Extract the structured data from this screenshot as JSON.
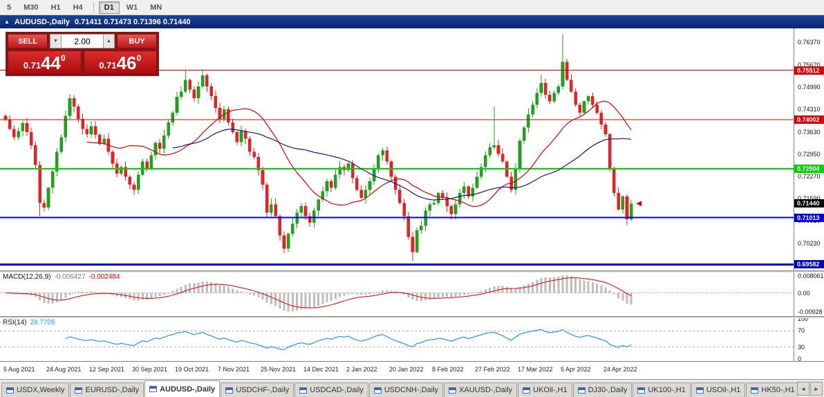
{
  "toolbar": {
    "groups": [
      [
        "5",
        "M30",
        "H1",
        "H4"
      ],
      [
        "D1",
        "W1",
        "MN"
      ]
    ],
    "active": "D1"
  },
  "chart_window": {
    "collapse_icon": "▲",
    "title": "AUDUSD-,Daily",
    "ohlc": "0.71411 0.71473 0.71396 0.71440"
  },
  "trade_panel": {
    "sell_label": "SELL",
    "buy_label": "BUY",
    "volume": "2.00",
    "spinner_down": "▼",
    "spinner_up": "▲",
    "bid": {
      "prefix": "0.71",
      "big": "44",
      "sup": "0"
    },
    "ask": {
      "prefix": "0.71",
      "big": "46",
      "sup": "0"
    }
  },
  "price_axis": {
    "ticks": [
      "0.76370",
      "0.75670",
      "0.74990",
      "0.74310",
      "0.73630",
      "0.72950",
      "0.72270",
      "0.71590",
      "0.70910",
      "0.70230",
      "0.69550"
    ]
  },
  "levels": [
    {
      "price": 0.75512,
      "label": "0.75512",
      "color": "#dd0000",
      "width": 1
    },
    {
      "price": 0.74002,
      "label": "0.74002",
      "color": "#dd0000",
      "width": 1
    },
    {
      "price": 0.72504,
      "label": "0.72504",
      "color": "#00d500",
      "width": 2
    },
    {
      "price": 0.71013,
      "label": "0.71013",
      "color": "#0000ee",
      "width": 2
    },
    {
      "price": 0.69582,
      "label": "0.69582",
      "color": "#0000bb",
      "width": 3
    }
  ],
  "current_price": {
    "price": 0.7144,
    "label": "0.71440"
  },
  "macd_panel": {
    "name": "MACD(12,26,9)",
    "main_value": "-0.006427",
    "signal_value": "-0.002484",
    "ticks": [
      {
        "v": 0.008061,
        "label": "0.008061"
      },
      {
        "v": 0,
        "label": "0.00"
      },
      {
        "v": -0.00928,
        "label": "-0.00928"
      }
    ]
  },
  "rsi_panel": {
    "name": "RSI(14)",
    "value": "28.7705",
    "levels": [
      70,
      30
    ],
    "ticks": [
      {
        "v": 100,
        "label": "100"
      },
      {
        "v": 70,
        "label": "70"
      },
      {
        "v": 30,
        "label": "30"
      },
      {
        "v": 0,
        "label": "0"
      }
    ]
  },
  "time_axis": {
    "labels": [
      "5 Aug 2021",
      "24 Aug 2021",
      "12 Sep 2021",
      "30 Sep 2021",
      "19 Oct 2021",
      "7 Nov 2021",
      "25 Nov 2021",
      "14 Dec 2021",
      "2 Jan 2022",
      "20 Jan 2022",
      "8 Feb 2022",
      "27 Feb 2022",
      "17 Mar 2022",
      "5 Apr 2022",
      "24 Apr 2022"
    ],
    "candles_per_label": 10
  },
  "tabs": {
    "items": [
      "USDX,Weekly",
      "EURUSD-,Daily",
      "AUDUSD-,Daily",
      "USDCHF-,Daily",
      "USDCAD-,Daily",
      "USDCNH-,Daily",
      "XAUUSD-,Daily",
      "UKOil-,H1",
      "DJ30-,Daily",
      "UK100-,H1",
      "USOil-,H1",
      "HK50-,H1"
    ],
    "active_index": 2,
    "scroll_left": "◄",
    "scroll_right": "►"
  },
  "chart_data": {
    "type": "candlestick",
    "symbol": "AUDUSD-",
    "timeframe": "Daily",
    "title": "AUDUSD-,Daily",
    "price_range": {
      "min": 0.6944,
      "max": 0.7675
    },
    "colors": {
      "up": "#1fa11f",
      "down": "#e32222",
      "ma_fast": "#dd0000",
      "ma_slow": "#131a7a",
      "macd_hist": "#bdbdbd",
      "macd_signal": "#dd0000",
      "rsi": "#2196f3"
    },
    "closes": [
      0.74,
      0.7372,
      0.7346,
      0.7366,
      0.739,
      0.7362,
      0.7322,
      0.7262,
      0.7146,
      0.7132,
      0.7192,
      0.7242,
      0.7302,
      0.7346,
      0.7412,
      0.7466,
      0.744,
      0.7402,
      0.7372,
      0.7356,
      0.738,
      0.7354,
      0.7326,
      0.7342,
      0.7302,
      0.7266,
      0.7236,
      0.7256,
      0.7226,
      0.7202,
      0.7186,
      0.7232,
      0.7272,
      0.7252,
      0.7292,
      0.733,
      0.7312,
      0.7352,
      0.7392,
      0.7422,
      0.747,
      0.7486,
      0.7522,
      0.7492,
      0.7466,
      0.7502,
      0.7536,
      0.7502,
      0.7472,
      0.7436,
      0.7402,
      0.7432,
      0.7392,
      0.7362,
      0.7332,
      0.7366,
      0.7342,
      0.7302,
      0.7286,
      0.7246,
      0.7202,
      0.7116,
      0.7142,
      0.7106,
      0.7046,
      0.7006,
      0.7052,
      0.7082,
      0.7116,
      0.7136,
      0.7106,
      0.7086,
      0.7122,
      0.7156,
      0.7182,
      0.7212,
      0.7192,
      0.7232,
      0.7256,
      0.7246,
      0.7266,
      0.7222,
      0.7186,
      0.7162,
      0.7186,
      0.7212,
      0.7252,
      0.7292,
      0.7306,
      0.7272,
      0.7226,
      0.7186,
      0.7146,
      0.7106,
      0.7042,
      0.6996,
      0.7062,
      0.7076,
      0.7122,
      0.7142,
      0.7146,
      0.7176,
      0.7162,
      0.7136,
      0.7112,
      0.7142,
      0.7176,
      0.7196,
      0.7166,
      0.7192,
      0.7226,
      0.7256,
      0.7292,
      0.7316,
      0.7322,
      0.7296,
      0.7272,
      0.7226,
      0.7186,
      0.7252,
      0.7336,
      0.7376,
      0.7416,
      0.7446,
      0.7482,
      0.7512,
      0.7476,
      0.7456,
      0.7482,
      0.7502,
      0.7577,
      0.7522,
      0.7486,
      0.7446,
      0.7422,
      0.7456,
      0.7472,
      0.7446,
      0.7422,
      0.7386,
      0.7356,
      0.7252,
      0.7176,
      0.7126,
      0.7166,
      0.7096,
      0.7144
    ],
    "wick_overrides": {
      "8": {
        "low": 0.7106
      },
      "15": {
        "high": 0.7478
      },
      "30": {
        "low": 0.717
      },
      "42": {
        "high": 0.7552
      },
      "46": {
        "high": 0.7556
      },
      "65": {
        "low": 0.6993
      },
      "88": {
        "high": 0.7314
      },
      "95": {
        "low": 0.6968
      },
      "114": {
        "high": 0.744
      },
      "125": {
        "high": 0.7538
      },
      "130": {
        "high": 0.7661
      },
      "145": {
        "low": 0.7078
      }
    }
  }
}
